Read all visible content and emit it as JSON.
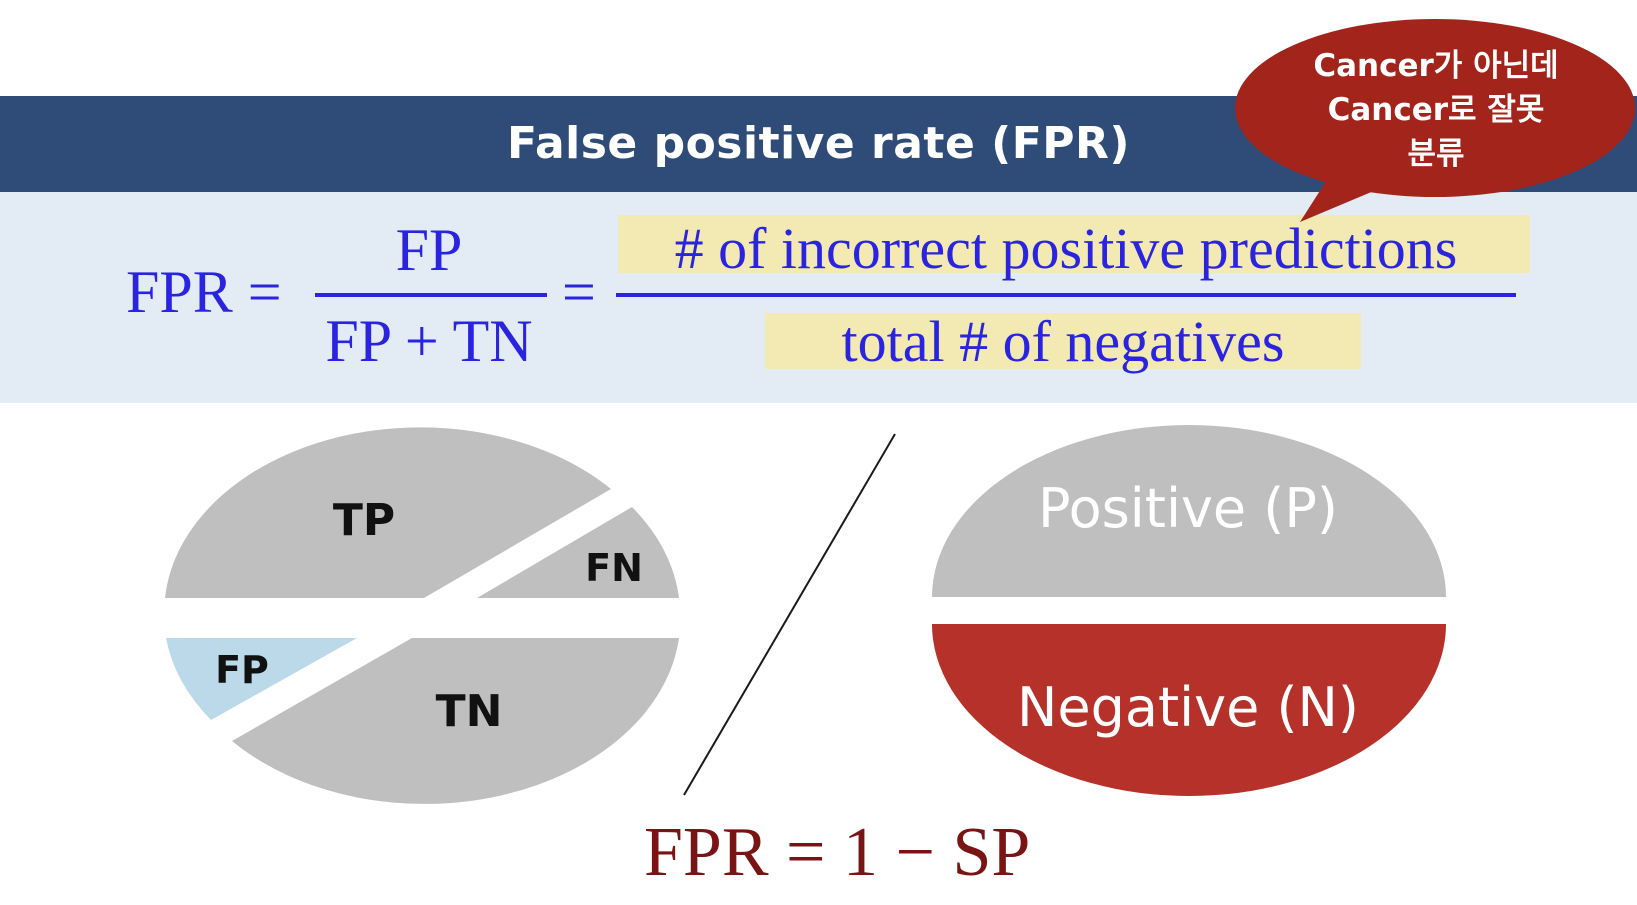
{
  "title": "False positive rate (FPR)",
  "callout": {
    "lines": [
      "Cancer가 아닌데",
      "Cancer로 잘못",
      "분류"
    ],
    "color": "#a3241b"
  },
  "formula": {
    "lhs": "FPR =",
    "frac1_num": "FP",
    "frac1_den": "FP + TN",
    "equals": "=",
    "frac2_num": "# of incorrect positive predictions",
    "frac2_den": "total # of negatives",
    "color": "#2a24e0",
    "highlight_color": "#f2e9b3"
  },
  "left_pie": {
    "segments": [
      {
        "label": "TP",
        "color": "#bfbfbf"
      },
      {
        "label": "FN",
        "color": "#bfbfbf"
      },
      {
        "label": "FP",
        "color": "#bcd9ea"
      },
      {
        "label": "TN",
        "color": "#bfbfbf"
      }
    ]
  },
  "right_ellipse": {
    "top_label": "Positive (P)",
    "top_color": "#bfbfbf",
    "bottom_label": "Negative (N)",
    "bottom_color": "#b6312a"
  },
  "bottom_formula": "FPR = 1 − SP",
  "colors": {
    "title_bar": "#2f4c78",
    "formula_band": "#e3ebf5",
    "bottom_formula": "#7a1414"
  }
}
